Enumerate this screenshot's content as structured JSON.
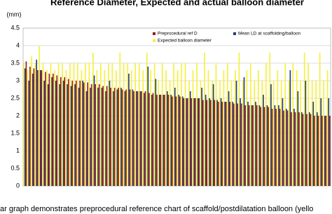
{
  "chart_data": {
    "type": "bar",
    "title": "Reference Diameter, Expected and actual balloon diameter",
    "y_unit_label": "(mm)",
    "caption": "ar graph demonstrates preprocedural reference    chart of  scaffold/postdilatation  balloon  (yello",
    "categories": [
      null,
      null,
      null,
      null,
      null,
      null,
      null,
      null,
      null,
      null,
      null,
      null,
      null,
      null,
      null,
      null,
      null,
      null,
      null,
      null,
      null,
      null,
      null,
      null,
      null,
      null,
      null,
      null,
      null,
      null,
      null,
      null,
      null,
      null,
      null,
      null,
      null,
      null,
      null,
      null,
      null,
      null,
      null,
      null,
      null,
      null,
      null,
      null,
      null,
      null,
      null,
      null,
      null,
      null,
      null,
      null,
      null,
      null,
      null,
      null,
      null,
      null,
      null,
      null,
      null,
      null,
      null,
      null,
      null,
      null,
      null,
      null,
      null,
      null,
      null,
      null,
      null,
      null,
      null,
      null
    ],
    "series": [
      {
        "name": "Preprocedural ref D",
        "color": "#9b1c1c",
        "values": [
          3.55,
          3.4,
          3.35,
          3.3,
          3.3,
          3.25,
          3.2,
          3.2,
          3.15,
          3.1,
          3.1,
          3.05,
          3.0,
          3.0,
          3.0,
          2.95,
          2.95,
          2.9,
          2.9,
          2.9,
          2.85,
          2.85,
          2.8,
          2.8,
          2.8,
          2.75,
          2.75,
          2.75,
          2.7,
          2.7,
          2.7,
          2.7,
          2.65,
          2.65,
          2.6,
          2.6,
          2.6,
          2.6,
          2.55,
          2.55,
          2.55,
          2.5,
          2.5,
          2.5,
          2.5,
          2.5,
          2.45,
          2.45,
          2.45,
          2.45,
          2.4,
          2.4,
          2.4,
          2.4,
          2.35,
          2.35,
          2.35,
          2.3,
          2.3,
          2.3,
          2.3,
          2.25,
          2.25,
          2.25,
          2.2,
          2.2,
          2.2,
          2.15,
          2.15,
          2.1,
          2.1,
          2.1,
          2.05,
          2.05,
          2.05,
          2.0,
          2.0,
          2.0,
          2.0,
          2.0
        ]
      },
      {
        "name": "Mean LD at scaffolding/balloon",
        "color": "#243f73",
        "values": [
          3.35,
          3.0,
          3.2,
          3.6,
          3.3,
          3.0,
          2.9,
          3.1,
          3.0,
          2.9,
          3.0,
          2.9,
          2.85,
          2.9,
          2.8,
          3.0,
          2.7,
          2.8,
          3.15,
          2.8,
          2.8,
          2.7,
          3.0,
          2.7,
          2.75,
          2.8,
          2.7,
          3.2,
          2.75,
          2.7,
          2.7,
          2.65,
          3.4,
          2.6,
          3.05,
          2.6,
          2.6,
          2.7,
          2.6,
          2.8,
          2.6,
          2.55,
          2.5,
          2.7,
          2.5,
          2.5,
          2.8,
          2.6,
          2.5,
          2.9,
          2.45,
          2.5,
          2.4,
          2.7,
          2.4,
          3.0,
          2.5,
          3.1,
          2.4,
          2.3,
          2.4,
          2.3,
          2.6,
          2.3,
          2.9,
          2.3,
          2.3,
          2.5,
          2.2,
          3.3,
          2.2,
          2.7,
          2.1,
          3.0,
          2.1,
          2.4,
          2.1,
          2.5,
          2.0,
          2.5
        ]
      },
      {
        "name": "Expected balloon diameter",
        "color": "#f5f03c",
        "values": [
          3.5,
          3.3,
          3.7,
          3.5,
          4.0,
          3.5,
          3.3,
          3.5,
          3.3,
          3.5,
          3.5,
          3.3,
          3.5,
          3.5,
          3.5,
          3.3,
          3.5,
          3.5,
          3.8,
          3.3,
          3.5,
          3.3,
          3.5,
          3.5,
          3.3,
          3.8,
          3.5,
          3.5,
          3.3,
          3.5,
          3.5,
          3.3,
          3.8,
          3.3,
          3.5,
          3.0,
          3.5,
          3.3,
          3.0,
          3.5,
          3.3,
          3.5,
          3.5,
          3.0,
          3.3,
          3.5,
          3.0,
          3.8,
          3.3,
          3.0,
          3.5,
          3.0,
          3.3,
          3.5,
          3.0,
          3.3,
          3.8,
          3.0,
          3.3,
          3.5,
          3.0,
          3.3,
          3.0,
          3.5,
          3.8,
          3.0,
          3.3,
          3.0,
          3.5,
          3.0,
          3.5,
          3.3,
          3.0,
          3.8,
          3.5,
          3.0,
          3.0,
          3.8,
          3.0,
          3.3
        ]
      }
    ],
    "ylim": [
      0,
      4.5
    ],
    "yticks": [
      0,
      0.5,
      1,
      1.5,
      2,
      2.5,
      3,
      3.5,
      4,
      4.5
    ],
    "grid": true
  }
}
